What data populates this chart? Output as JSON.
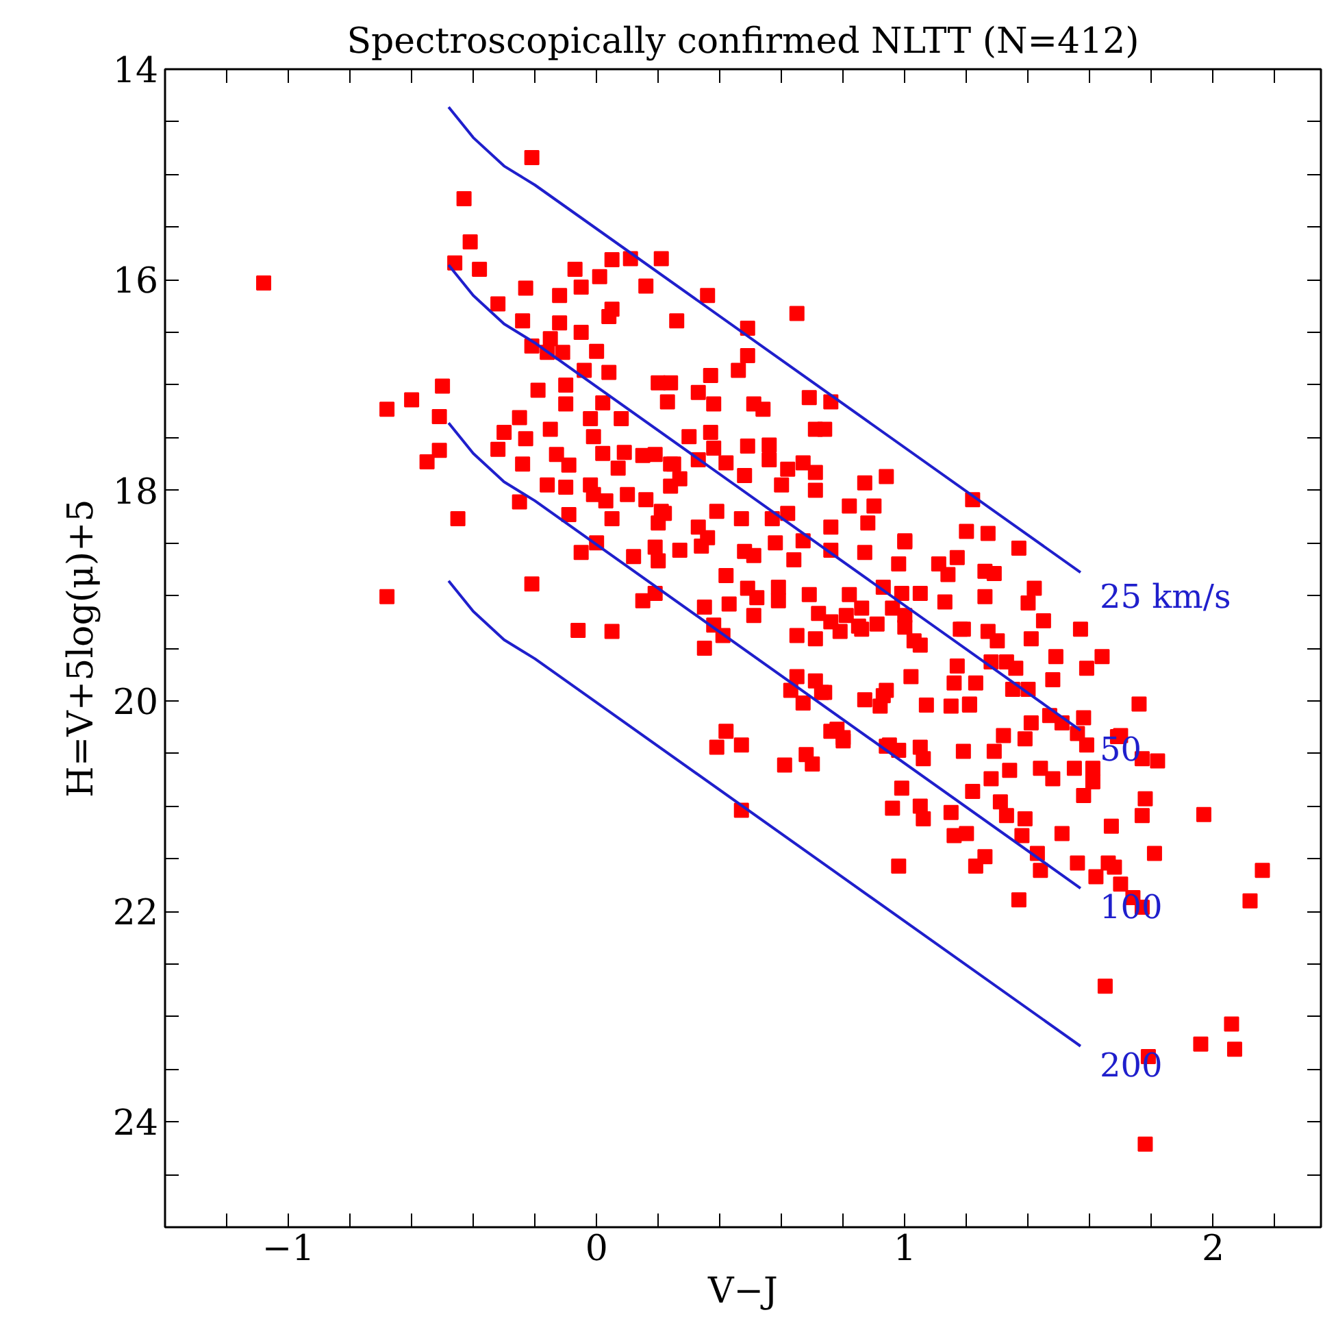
{
  "chart_data": {
    "type": "scatter",
    "title": "Spectroscopically confirmed NLTT (N=412)",
    "xlabel": "V−J",
    "ylabel": "H=V+5log(μ)+5",
    "xlim": [
      -1.4,
      2.35
    ],
    "ylim": [
      25,
      14
    ],
    "xticks": [
      {
        "value": -1.2,
        "label": null
      },
      -1,
      {
        "value": -0.8,
        "label": null
      },
      {
        "value": -0.6,
        "label": null
      },
      {
        "value": -0.4,
        "label": null
      },
      {
        "value": -0.2,
        "label": null
      },
      0,
      {
        "value": 0.2,
        "label": null
      },
      {
        "value": 0.4,
        "label": null
      },
      {
        "value": 0.6,
        "label": null
      },
      {
        "value": 0.8,
        "label": null
      },
      1,
      {
        "value": 1.2,
        "label": null
      },
      {
        "value": 1.4,
        "label": null
      },
      {
        "value": 1.6,
        "label": null
      },
      {
        "value": 1.8,
        "label": null
      },
      2,
      {
        "value": 2.2,
        "label": null
      }
    ],
    "yticks": [
      14,
      {
        "value": 14.5,
        "label": null
      },
      {
        "value": 15,
        "label": null
      },
      {
        "value": 15.5,
        "label": null
      },
      16,
      {
        "value": 16.5,
        "label": null
      },
      {
        "value": 17,
        "label": null
      },
      {
        "value": 17.5,
        "label": null
      },
      18,
      {
        "value": 18.5,
        "label": null
      },
      {
        "value": 19,
        "label": null
      },
      {
        "value": 19.5,
        "label": null
      },
      20,
      {
        "value": 20.5,
        "label": null
      },
      {
        "value": 21,
        "label": null
      },
      {
        "value": 21.5,
        "label": null
      },
      22,
      {
        "value": 22.5,
        "label": null
      },
      {
        "value": 23,
        "label": null
      },
      {
        "value": 23.5,
        "label": null
      },
      24,
      {
        "value": 24.5,
        "label": null
      }
    ],
    "grid": false,
    "series": [
      {
        "marker": "square",
        "color": "#ff0000",
        "x": [
          -0.21,
          -0.43,
          -0.41,
          -0.46,
          -0.38,
          -1.08,
          -0.07,
          0.01,
          0.05,
          0.11,
          -0.05,
          -0.12,
          -0.23,
          -0.32,
          -0.24,
          -0.12,
          -0.05,
          0.04,
          0.05,
          -0.21,
          -0.15,
          -0.16,
          -0.11,
          0.0,
          -0.04,
          0.04,
          -0.5,
          -0.6,
          -0.68,
          -0.51,
          -0.19,
          -0.1,
          -0.1,
          0.02,
          -0.02,
          0.08,
          -0.25,
          -0.3,
          -0.23,
          -0.15,
          -0.51,
          -0.55,
          -0.32,
          -0.24,
          -0.13,
          -0.09,
          -0.01,
          0.02,
          0.09,
          0.15,
          0.07,
          -0.16,
          -0.1,
          -0.02,
          -0.01,
          0.1,
          0.03,
          -0.25,
          -0.45,
          -0.09,
          0.05,
          -0.68,
          -0.21,
          -0.06,
          0.05,
          -0.05,
          0.0,
          0.12,
          0.19,
          0.2,
          0.27,
          0.15,
          0.19,
          0.16,
          0.21,
          0.24,
          0.24,
          0.21,
          0.16,
          0.36,
          0.65,
          0.26,
          0.49,
          0.46,
          0.49,
          0.37,
          0.2,
          0.24,
          0.33,
          0.38,
          0.23,
          0.51,
          0.54,
          0.69,
          0.76,
          0.71,
          0.74,
          0.3,
          0.37,
          0.38,
          0.49,
          0.56,
          0.56,
          0.67,
          0.71,
          0.62,
          0.6,
          0.71,
          0.87,
          0.94,
          0.19,
          0.25,
          0.33,
          0.42,
          0.48,
          0.27,
          0.22,
          0.2,
          0.39,
          0.47,
          0.57,
          0.62,
          0.33,
          0.36,
          0.34,
          0.58,
          0.48,
          0.51,
          0.64,
          0.67,
          0.76,
          0.88,
          0.9,
          0.82,
          0.76,
          0.87,
          0.98,
          1.0,
          1.11,
          1.14,
          1.17,
          0.42,
          0.49,
          0.52,
          0.59,
          0.59,
          0.69,
          0.72,
          0.76,
          0.82,
          0.86,
          0.93,
          0.96,
          1.0,
          1.05,
          1.13,
          0.35,
          0.43,
          0.51,
          0.65,
          0.71,
          0.79,
          0.85,
          0.91,
          0.35,
          0.38,
          0.41,
          1.03,
          1.18,
          1.22,
          1.2,
          1.27,
          1.37,
          1.0,
          1.26,
          1.29,
          1.26,
          1.42,
          1.4,
          0.99,
          0.81,
          0.86,
          1.0,
          1.05,
          1.19,
          1.27,
          1.3,
          1.41,
          1.45,
          1.57,
          1.64,
          1.59,
          1.49,
          1.48,
          1.36,
          1.33,
          1.35,
          1.4,
          1.28,
          1.17,
          1.16,
          1.23,
          1.21,
          1.15,
          1.07,
          1.02,
          0.93,
          0.87,
          0.78,
          0.8,
          0.73,
          0.95,
          0.98,
          1.05,
          1.06,
          1.19,
          1.29,
          1.32,
          1.39,
          1.41,
          1.47,
          1.51,
          1.58,
          1.76,
          1.7,
          1.56,
          1.59,
          1.55,
          1.61,
          1.61,
          1.58,
          1.48,
          1.44,
          1.34,
          1.28,
          1.22,
          1.31,
          1.33,
          1.39,
          1.38,
          1.15,
          1.06,
          1.05,
          0.96,
          0.99,
          1.16,
          1.2,
          1.26,
          1.23,
          0.98,
          1.43,
          1.44,
          1.51,
          1.56,
          1.62,
          1.66,
          1.68,
          1.7,
          1.67,
          1.78,
          1.77,
          1.77,
          1.82,
          1.69,
          1.81,
          1.97,
          2.16,
          2.12,
          1.37,
          1.74,
          1.77,
          1.65,
          2.06,
          1.96,
          2.07,
          1.79,
          1.78,
          0.42,
          0.39,
          0.47,
          0.61,
          0.68,
          0.7,
          0.47,
          0.76,
          0.8,
          0.65,
          0.71,
          0.74,
          0.63,
          0.67,
          0.94,
          0.92,
          0.94,
          1.21
        ],
        "values": [
          14.84,
          15.23,
          15.64,
          15.84,
          15.9,
          16.03,
          15.9,
          15.97,
          15.81,
          15.8,
          16.07,
          16.15,
          16.08,
          16.23,
          16.39,
          16.41,
          16.5,
          16.35,
          16.28,
          16.63,
          16.56,
          16.69,
          16.69,
          16.68,
          16.86,
          16.88,
          17.01,
          17.14,
          17.23,
          17.3,
          17.05,
          17.0,
          17.18,
          17.17,
          17.32,
          17.32,
          17.31,
          17.45,
          17.51,
          17.42,
          17.62,
          17.73,
          17.61,
          17.75,
          17.66,
          17.76,
          17.49,
          17.65,
          17.64,
          17.67,
          17.79,
          17.95,
          17.97,
          17.95,
          18.04,
          18.04,
          18.1,
          18.11,
          18.27,
          18.23,
          18.27,
          19.01,
          18.89,
          19.33,
          19.34,
          18.59,
          18.5,
          18.63,
          18.54,
          18.67,
          18.57,
          19.05,
          18.98,
          18.09,
          18.2,
          17.96,
          17.75,
          15.8,
          16.06,
          16.15,
          16.32,
          16.39,
          16.46,
          16.86,
          16.72,
          16.91,
          16.98,
          16.98,
          17.07,
          17.18,
          17.16,
          17.18,
          17.23,
          17.12,
          17.16,
          17.42,
          17.42,
          17.49,
          17.45,
          17.6,
          17.58,
          17.57,
          17.71,
          17.74,
          17.83,
          17.8,
          17.95,
          18.0,
          17.93,
          17.87,
          17.66,
          17.75,
          17.71,
          17.74,
          17.86,
          17.89,
          18.22,
          18.31,
          18.2,
          18.27,
          18.27,
          18.22,
          18.35,
          18.45,
          18.53,
          18.5,
          18.58,
          18.62,
          18.66,
          18.48,
          18.35,
          18.31,
          18.15,
          18.15,
          18.57,
          18.59,
          18.7,
          18.48,
          18.7,
          18.8,
          18.64,
          18.81,
          18.93,
          19.02,
          18.92,
          19.05,
          18.99,
          19.17,
          19.25,
          18.99,
          19.12,
          18.92,
          19.12,
          19.3,
          18.98,
          19.06,
          19.11,
          19.08,
          19.19,
          19.38,
          19.41,
          19.34,
          19.29,
          19.27,
          19.5,
          19.28,
          19.38,
          19.43,
          19.32,
          18.09,
          18.39,
          18.41,
          18.55,
          18.49,
          18.77,
          18.79,
          19.01,
          18.93,
          19.07,
          18.98,
          19.19,
          19.32,
          19.19,
          19.47,
          19.32,
          19.34,
          19.43,
          19.41,
          19.24,
          19.32,
          19.58,
          19.69,
          19.58,
          19.8,
          19.69,
          19.63,
          19.89,
          19.89,
          19.63,
          19.67,
          19.83,
          19.83,
          20.03,
          20.05,
          20.04,
          19.77,
          19.95,
          19.99,
          20.27,
          20.35,
          19.92,
          20.42,
          20.47,
          20.44,
          20.55,
          20.48,
          20.48,
          20.33,
          20.36,
          20.21,
          20.14,
          20.21,
          20.16,
          20.03,
          20.33,
          20.31,
          20.42,
          20.64,
          20.64,
          20.77,
          20.9,
          20.74,
          20.64,
          20.66,
          20.74,
          20.86,
          20.96,
          21.09,
          21.12,
          21.28,
          21.06,
          21.12,
          21.0,
          21.02,
          20.83,
          21.28,
          21.26,
          21.48,
          21.57,
          21.57,
          21.45,
          21.61,
          21.26,
          21.54,
          21.67,
          21.54,
          21.58,
          21.74,
          21.19,
          20.93,
          21.09,
          20.55,
          20.57,
          20.34,
          21.45,
          21.08,
          21.61,
          21.9,
          21.89,
          21.87,
          21.96,
          22.71,
          23.07,
          23.26,
          23.31,
          23.38,
          24.21,
          20.29,
          20.44,
          20.42,
          20.61,
          20.51,
          20.6,
          21.04,
          20.29,
          20.38,
          19.77,
          19.81,
          19.92,
          19.9,
          20.02,
          19.9,
          20.05,
          20.43,
          20.04
        ]
      },
      {
        "type": "line",
        "color": "#1f1fcc",
        "line_style": "solid",
        "x": [
          -0.48,
          -0.4,
          -0.3,
          -0.2,
          1.57
        ],
        "values": [
          14.36,
          14.65,
          14.92,
          15.1,
          18.78
        ]
      },
      {
        "type": "line",
        "color": "#1f1fcc",
        "line_style": "solid",
        "x": [
          -0.48,
          -0.4,
          -0.3,
          -0.2,
          1.57
        ],
        "values": [
          15.86,
          16.15,
          16.42,
          16.6,
          20.28
        ]
      },
      {
        "type": "line",
        "color": "#1f1fcc",
        "line_style": "solid",
        "x": [
          -0.48,
          -0.4,
          -0.3,
          -0.2,
          1.57
        ],
        "values": [
          17.36,
          17.65,
          17.92,
          18.1,
          21.78
        ]
      },
      {
        "type": "line",
        "color": "#1f1fcc",
        "line_style": "solid",
        "x": [
          -0.48,
          -0.4,
          -0.3,
          -0.2,
          1.57
        ],
        "values": [
          18.86,
          19.15,
          19.42,
          19.6,
          23.28
        ]
      }
    ],
    "annotations": [
      "25 km/s",
      "50",
      "100",
      "200"
    ]
  }
}
